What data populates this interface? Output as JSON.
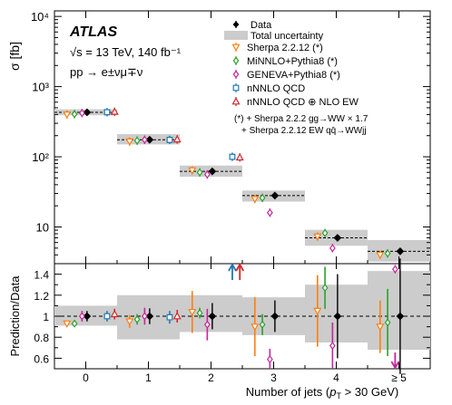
{
  "chart_data": [
    {
      "type": "scatter",
      "panel": "main",
      "ylabel": "σ [fb]",
      "yscale": "log",
      "ylim": [
        3,
        12000
      ],
      "xlim": [
        -0.5,
        5.5
      ],
      "y_tick_labels": [
        "10",
        "10²",
        "10³",
        "10⁴"
      ],
      "experiment": "ATLAS",
      "annotations": [
        "√s = 13 TeV, 140 fb⁻¹",
        "pp → e±νμ∓ν"
      ],
      "footnote": [
        "(*) + Sherpa 2.2.2 gg→WW × 1.7",
        "+ Sherpa 2.2.12 EW qq̄→WWjj"
      ],
      "legend_position": "top-right",
      "categories": [
        "0",
        "1",
        "2",
        "3",
        "4",
        "≥ 5"
      ],
      "data": {
        "name": "Data",
        "color": "#000000",
        "values": [
          430,
          175,
          62,
          28,
          7,
          4.5
        ],
        "uncertainty_band": [
          [
            390,
            475
          ],
          [
            150,
            210
          ],
          [
            52,
            75
          ],
          [
            23,
            33
          ],
          [
            5.4,
            9.1
          ],
          [
            3.2,
            6.5
          ]
        ]
      },
      "series": [
        {
          "name": "Sherpa 2.2.12 (*)",
          "color": "#ff7f0e",
          "marker": "triangle-down",
          "values": [
            400,
            165,
            64,
            25,
            7.3,
            4.0
          ]
        },
        {
          "name": "MiNNLO+Pythia8 (*)",
          "color": "#2ca02c",
          "marker": "diamond",
          "values": [
            405,
            170,
            60,
            26,
            8.2,
            4.2
          ]
        },
        {
          "name": "GENEVA+Pythia8 (*)",
          "color": "#c7259a",
          "marker": "diamond",
          "values": [
            420,
            175,
            56,
            16,
            5.0,
            2.5
          ]
        },
        {
          "name": "nNNLO QCD",
          "color": "#1f77b4",
          "marker": "square",
          "values": [
            432,
            174,
            100,
            0,
            0,
            0
          ]
        },
        {
          "name": "nNNLO QCD ⊕ NLO EW",
          "color": "#d62728",
          "marker": "triangle-up",
          "values": [
            438,
            177,
            98,
            0,
            0,
            0
          ]
        }
      ]
    },
    {
      "type": "scatter",
      "panel": "ratio",
      "ylabel": "Prediction/Data",
      "xlabel": "Number of jets (p_T > 30 GeV)",
      "xlabel_main": "Number of jets (",
      "xlabel_sub_symbol": "p",
      "xlabel_sub_index": "T",
      "xlabel_tail": " > 30 GeV)",
      "ylim": [
        0.5,
        1.5
      ],
      "y_ticks": [
        "0.6",
        "0.8",
        "1",
        "1.2",
        "1.4"
      ],
      "x_ticks": [
        "0",
        "1",
        "2",
        "3",
        "4",
        "≥ 5"
      ],
      "band": [
        [
          0.91,
          1.1
        ],
        [
          0.78,
          1.2
        ],
        [
          0.85,
          1.2
        ],
        [
          0.82,
          1.18
        ],
        [
          0.75,
          1.3
        ],
        [
          0.68,
          1.43
        ]
      ],
      "data_ratio": [
        [
          1.0,
          0.02
        ],
        [
          1.0,
          0.03
        ],
        [
          1.0,
          0.05
        ],
        [
          1.0,
          0.06
        ],
        [
          1.0,
          0.16
        ],
        [
          1.0,
          0.22
        ]
      ],
      "series_ratio": [
        {
          "name": "Sherpa 2.2.12 (*)",
          "values": [
            0.93,
            0.95,
            1.04,
            0.9,
            1.05,
            0.9
          ],
          "errors": [
            0.02,
            0.06,
            0.2,
            0.28,
            0.34,
            0.25
          ],
          "arrow": [
            false,
            false,
            false,
            false,
            false,
            false
          ]
        },
        {
          "name": "MiNNLO+Pythia8 (*)",
          "values": [
            0.93,
            0.97,
            1.03,
            0.92,
            1.27,
            0.94
          ],
          "errors": [
            0.02,
            0.05,
            0.05,
            0.1,
            0.2,
            0.32
          ],
          "arrow": [
            false,
            false,
            false,
            false,
            false,
            false
          ]
        },
        {
          "name": "GENEVA+Pythia8 (*)",
          "values": [
            1.0,
            1.0,
            0.92,
            0.59,
            0.72,
            0.52
          ],
          "errors": [
            0.05,
            0.08,
            0.15,
            0.1,
            0.22,
            0.1
          ],
          "arrow": [
            false,
            false,
            false,
            false,
            false,
            true
          ]
        },
        {
          "name": "nNNLO QCD",
          "values": [
            1.0,
            0.99,
            1.5,
            0,
            0,
            0
          ],
          "errors": [
            0.05,
            0.06,
            0,
            0,
            0,
            0
          ],
          "arrow": [
            false,
            false,
            true,
            false,
            false,
            false
          ]
        },
        {
          "name": "nNNLO QCD ⊕ NLO EW",
          "values": [
            1.02,
            1.0,
            1.5,
            0,
            0,
            0
          ],
          "errors": [
            0.05,
            0.06,
            0,
            0,
            0,
            0
          ],
          "arrow": [
            false,
            false,
            true,
            false,
            false,
            false
          ]
        }
      ]
    }
  ],
  "legend": {
    "data_label": "Data",
    "band_label": "Total uncertainty"
  }
}
